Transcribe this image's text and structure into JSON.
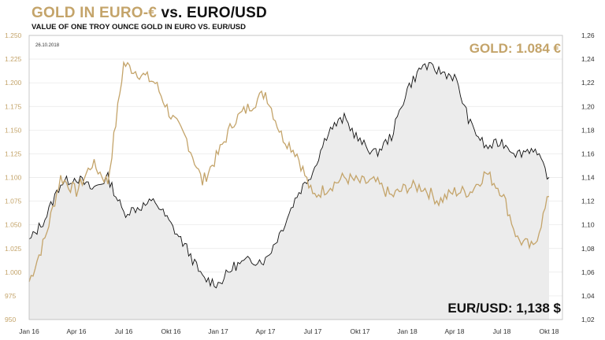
{
  "header": {
    "title_gold": "GOLD IN EURO-€",
    "title_dark": " vs. EURO/USD",
    "subtitle": "VALUE OF ONE TROY OUNCE GOLD IN EURO VS. EUR/USD"
  },
  "date_stamp": "26.10.2018",
  "annotations": {
    "gold": "GOLD: 1.084 €",
    "eurusd": "EUR/USD: 1,138 $"
  },
  "colors": {
    "gold": "#c4a46a",
    "eurusd": "#111111",
    "eurusd_fill": "#ececec",
    "grid": "#e6e6e6"
  },
  "chart_data": {
    "type": "line",
    "x_ticks": [
      "Jan 16",
      "Apr 16",
      "Jul 16",
      "Okt 16",
      "Jan 17",
      "Apr 17",
      "Jul 17",
      "Okt 17",
      "Jan 18",
      "Apr 18",
      "Jul 18",
      "Okt 18"
    ],
    "x": [
      "Jan 16",
      "Feb 16",
      "Mar 16",
      "Apr 16",
      "May 16",
      "Jun 16",
      "Jul 16",
      "Aug 16",
      "Sep 16",
      "Okt 16",
      "Nov 16",
      "Dec 16",
      "Jan 17",
      "Feb 17",
      "Mar 17",
      "Apr 17",
      "May 17",
      "Jun 17",
      "Jul 17",
      "Aug 17",
      "Sep 17",
      "Okt 17",
      "Nov 17",
      "Dec 17",
      "Jan 18",
      "Feb 18",
      "Mar 18",
      "Apr 18",
      "May 18",
      "Jun 18",
      "Jul 18",
      "Aug 18",
      "Sep 18",
      "Okt 18"
    ],
    "left_axis": {
      "ticks": [
        "1.250",
        "1.225",
        "1.200",
        "1.175",
        "1.150",
        "1.125",
        "1.100",
        "1.075",
        "1.050",
        "1.025",
        "1.000",
        "975",
        "950"
      ],
      "ylim": [
        950,
        1250
      ]
    },
    "right_axis": {
      "ticks": [
        "1,26",
        "1,24",
        "1,22",
        "1,20",
        "1,18",
        "1,16",
        "1,14",
        "1,12",
        "1,10",
        "1,08",
        "1,06",
        "1,04",
        "1,02"
      ],
      "ylim": [
        1.02,
        1.26
      ]
    },
    "series": [
      {
        "axis": "left",
        "values": [
          990,
          1035,
          1100,
          1085,
          1115,
          1095,
          1220,
          1210,
          1200,
          1165,
          1140,
          1095,
          1125,
          1160,
          1175,
          1190,
          1145,
          1125,
          1080,
          1090,
          1100,
          1095,
          1095,
          1080,
          1090,
          1090,
          1075,
          1085,
          1085,
          1105,
          1085,
          1035,
          1025,
          1080
        ]
      },
      {
        "axis": "right",
        "values": [
          1.086,
          1.105,
          1.135,
          1.14,
          1.13,
          1.14,
          1.11,
          1.115,
          1.12,
          1.1,
          1.08,
          1.055,
          1.05,
          1.065,
          1.07,
          1.07,
          1.095,
          1.125,
          1.145,
          1.18,
          1.19,
          1.17,
          1.16,
          1.175,
          1.215,
          1.235,
          1.23,
          1.225,
          1.185,
          1.165,
          1.17,
          1.16,
          1.165,
          1.14
        ]
      }
    ]
  }
}
